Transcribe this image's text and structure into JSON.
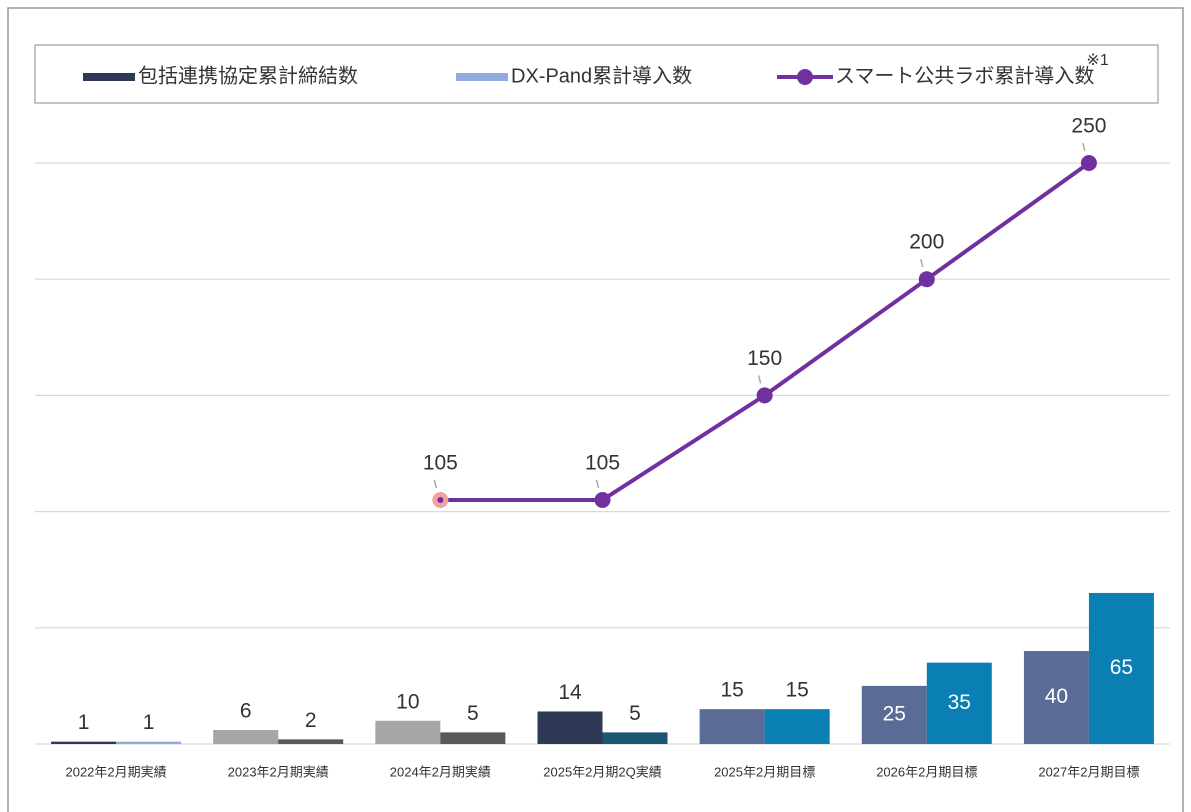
{
  "chart_data": {
    "type": "bar_line",
    "categories": [
      "2022年2月期実績",
      "2023年2月期実績",
      "2024年2月期実績",
      "2025年2月期2Q実績",
      "2025年2月期目標",
      "2026年2月期目標",
      "2027年2月期目標"
    ],
    "series": [
      {
        "name": "包括連携協定累計締結数",
        "type": "bar",
        "color": "#2e3a55",
        "colors": [
          "#2e3a55",
          "#a6a6a6",
          "#a6a6a6",
          "#2e3a55",
          "#5a6b95",
          "#5a6b95",
          "#5a6b95"
        ],
        "values": [
          1,
          6,
          10,
          14,
          15,
          25,
          40
        ]
      },
      {
        "name": "DX-Pand累計導入数",
        "type": "bar",
        "color": "#8faadc",
        "colors": [
          "#8faadc",
          "#595959",
          "#595959",
          "#1d5672",
          "#0a7fb3",
          "#0a7fb3",
          "#0a7fb3"
        ],
        "values": [
          1,
          2,
          5,
          5,
          15,
          35,
          65
        ]
      },
      {
        "name": "スマート公共ラボ累計導入数",
        "type": "line",
        "color": "#7030a0",
        "point_colors": [
          null,
          null,
          "#f4a09c",
          "#7030a0",
          "#7030a0",
          "#7030a0",
          "#7030a0"
        ],
        "values": [
          null,
          null,
          105,
          105,
          150,
          200,
          250
        ]
      }
    ],
    "annotation": "※1",
    "ylim": [
      0,
      250
    ],
    "yticks": [
      0,
      50,
      100,
      150,
      200,
      250
    ],
    "grid": true,
    "legend": "top"
  }
}
